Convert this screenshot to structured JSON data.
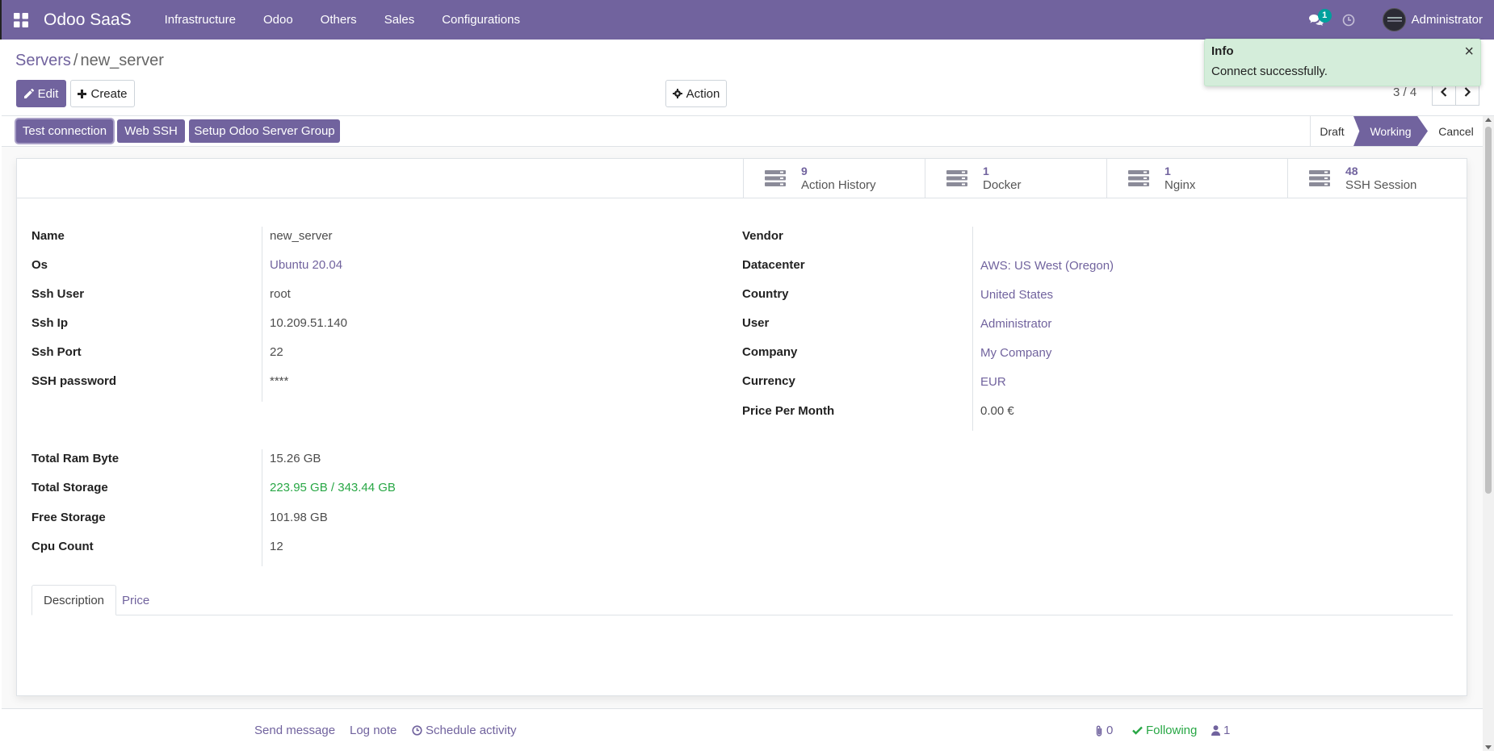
{
  "navbar": {
    "brand": "Odoo SaaS",
    "menu": [
      "Infrastructure",
      "Odoo",
      "Others",
      "Sales",
      "Configurations"
    ],
    "chat_badge": "1",
    "user_name": "Administrator",
    "color": "#71639e"
  },
  "breadcrumb": {
    "parent": "Servers",
    "separator": "/",
    "current": "new_server"
  },
  "toolbar": {
    "edit_label": "Edit",
    "create_label": "Create",
    "action_label": "Action"
  },
  "pager": {
    "value": "3 / 4"
  },
  "toast": {
    "title": "Info",
    "message": "Connect successfully.",
    "close": "×",
    "background": "#d4edda"
  },
  "header_buttons": {
    "test_connection": "Test connection",
    "web_ssh": "Web SSH",
    "setup_group": "Setup Odoo Server Group"
  },
  "statusbar": {
    "stages": [
      "Draft",
      "Working",
      "Cancel"
    ],
    "active": "Working"
  },
  "smart_buttons": [
    {
      "count": "9",
      "label": "Action History"
    },
    {
      "count": "1",
      "label": "Docker"
    },
    {
      "count": "1",
      "label": "Nginx"
    },
    {
      "count": "48",
      "label": "SSH Session"
    }
  ],
  "fields_left": [
    {
      "label": "Name",
      "value": "new_server"
    },
    {
      "label": "Os",
      "value": "Ubuntu 20.04"
    },
    {
      "label": "Ssh User",
      "value": "root"
    },
    {
      "label": "Ssh Ip",
      "value": "10.209.51.140"
    },
    {
      "label": "Ssh Port",
      "value": "22"
    },
    {
      "label": "SSH password",
      "value": "****"
    }
  ],
  "fields_right": [
    {
      "label": "Vendor",
      "value": ""
    },
    {
      "label": "Datacenter",
      "value": "AWS: US West (Oregon)"
    },
    {
      "label": "Country",
      "value": "United States"
    },
    {
      "label": "User",
      "value": "Administrator"
    },
    {
      "label": "Company",
      "value": "My Company"
    },
    {
      "label": "Currency",
      "value": "EUR"
    },
    {
      "label": "Price Per Month",
      "value": "0.00 €"
    }
  ],
  "fields_resources": [
    {
      "label": "Total Ram Byte",
      "value": "15.26 GB"
    },
    {
      "label": "Total Storage",
      "value": "223.95 GB / 343.44 GB"
    },
    {
      "label": "Free Storage",
      "value": "101.98 GB"
    },
    {
      "label": "Cpu Count",
      "value": "12"
    }
  ],
  "tabs": [
    "Description",
    "Price"
  ],
  "chatter": {
    "send_message": "Send message",
    "log_note": "Log note",
    "schedule_activity": "Schedule activity",
    "attachments": "0",
    "following": "Following",
    "followers": "1"
  }
}
